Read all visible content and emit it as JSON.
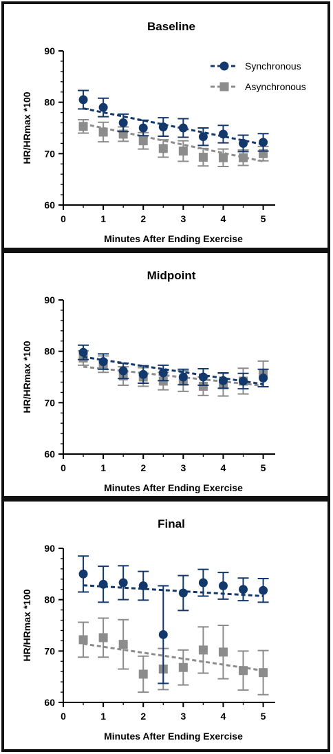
{
  "colors": {
    "synchronous": "#13386b",
    "asynchronous": "#8c8c8c"
  },
  "legend": {
    "placement": "top-right",
    "entries": [
      "Synchronous",
      "Asynchronous"
    ]
  },
  "chart_data": [
    {
      "type": "scatter",
      "title": "Baseline",
      "xlabel": "Minutes After Ending Exercise",
      "ylabel": "HR/HRmax *100",
      "xlim": [
        0,
        5.3
      ],
      "ylim": [
        60,
        90
      ],
      "xticks": [
        "0",
        "1",
        "2",
        "3",
        "4",
        "5"
      ],
      "yticks": [
        "60",
        "70",
        "80",
        "90"
      ],
      "x": [
        0.5,
        1,
        1.5,
        2,
        2.5,
        3,
        3.5,
        4,
        4.5,
        5
      ],
      "series": [
        {
          "name": "Synchronous",
          "marker": "circle",
          "values": [
            80.5,
            79,
            76,
            75,
            75.2,
            75,
            73.3,
            73.8,
            72,
            72.2
          ],
          "error": [
            1.8,
            1.8,
            1.7,
            1.5,
            1.8,
            1.8,
            1.7,
            1.7,
            1.6,
            1.7
          ],
          "trend": [
            78.8,
            71.8
          ]
        },
        {
          "name": "Asynchronous",
          "marker": "square",
          "values": [
            75.3,
            74.2,
            73.8,
            72.5,
            71,
            70.5,
            69.3,
            69.2,
            69.2,
            70
          ],
          "error": [
            1.3,
            1.9,
            1.4,
            1.6,
            1.7,
            2,
            1.7,
            1.7,
            1.5,
            1.4
          ],
          "trend": [
            75.8,
            68.5
          ]
        }
      ]
    },
    {
      "type": "scatter",
      "title": "Midpoint",
      "xlabel": "Minutes After Ending Exercise",
      "ylabel": "HR/HRmax *100",
      "xlim": [
        0,
        5.3
      ],
      "ylim": [
        60,
        90
      ],
      "xticks": [
        "0",
        "1",
        "2",
        "3",
        "4",
        "5"
      ],
      "yticks": [
        "60",
        "70",
        "80",
        "90"
      ],
      "x": [
        0.5,
        1,
        1.5,
        2,
        2.5,
        3,
        3.5,
        4,
        4.5,
        5
      ],
      "series": [
        {
          "name": "Synchronous",
          "marker": "circle",
          "values": [
            79.8,
            78,
            76.2,
            75.5,
            75.8,
            75,
            75,
            74.3,
            74.2,
            74.8
          ],
          "error": [
            1.4,
            1.5,
            1.5,
            1.7,
            1.5,
            1.5,
            1.6,
            1.5,
            1.5,
            1.7
          ],
          "trend": [
            78.9,
            73.6
          ]
        },
        {
          "name": "Asynchronous",
          "marker": "square",
          "values": [
            78.7,
            77.5,
            75.2,
            75,
            74.2,
            74.2,
            73.2,
            73.5,
            74.2,
            75.6
          ],
          "error": [
            1.4,
            1.6,
            1.8,
            1.8,
            1.7,
            2,
            1.8,
            2.2,
            2.5,
            2.5
          ],
          "trend": [
            77,
            73.3
          ]
        }
      ]
    },
    {
      "type": "scatter",
      "title": "Final",
      "xlabel": "Minutes After Ending Exercise",
      "ylabel": "HR/HRmax *100",
      "xlim": [
        0,
        5.3
      ],
      "ylim": [
        60,
        90
      ],
      "xticks": [
        "0",
        "1",
        "2",
        "3",
        "4",
        "5"
      ],
      "yticks": [
        "60",
        "70",
        "80",
        "90"
      ],
      "x": [
        0.5,
        1,
        1.5,
        2,
        2.5,
        3,
        3.5,
        4,
        4.5,
        5
      ],
      "series": [
        {
          "name": "Synchronous",
          "marker": "circle",
          "values": [
            85,
            83,
            83.3,
            82.7,
            73.2,
            81.3,
            83.3,
            82.7,
            82,
            81.8
          ],
          "error": [
            3.5,
            3.5,
            3.3,
            2.8,
            9.5,
            3.4,
            2.6,
            2.6,
            2.2,
            2.3
          ],
          "trend": [
            82.8,
            80.7
          ]
        },
        {
          "name": "Asynchronous",
          "marker": "square",
          "values": [
            72.2,
            72.6,
            71.3,
            65.5,
            66.5,
            66.8,
            70.2,
            69.8,
            66.2,
            65.8
          ],
          "error": [
            3.4,
            3.8,
            4.8,
            3.5,
            4,
            3.4,
            4.5,
            5.2,
            3.8,
            4.3
          ],
          "trend": [
            71.4,
            66.2
          ]
        }
      ]
    }
  ]
}
